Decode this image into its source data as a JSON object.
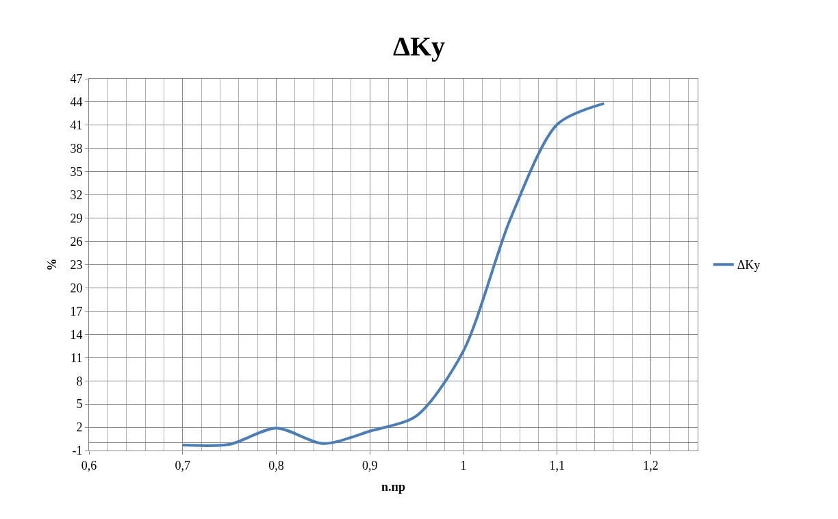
{
  "chart_data": {
    "type": "line",
    "title": "ΔKy",
    "xlabel": "n.пр",
    "ylabel": "%",
    "x": [
      0.7,
      0.75,
      0.8,
      0.85,
      0.9,
      0.95,
      1.0,
      1.05,
      1.1,
      1.15
    ],
    "series": [
      {
        "name": "ΔKy",
        "color": "#4a7ebb",
        "values": [
          -0.3,
          -0.2,
          1.9,
          -0.1,
          1.5,
          3.5,
          11.9,
          28.9,
          41.1,
          43.8
        ]
      }
    ],
    "xlim": [
      0.6,
      1.25
    ],
    "xticks": [
      {
        "value": 0.6,
        "label": "0,6"
      },
      {
        "value": 0.7,
        "label": "0,7"
      },
      {
        "value": 0.8,
        "label": "0,8"
      },
      {
        "value": 0.9,
        "label": "0,9"
      },
      {
        "value": 1,
        "label": "1"
      },
      {
        "value": 1.1,
        "label": "1,1"
      },
      {
        "value": 1.2,
        "label": "1,2"
      }
    ],
    "ylim": [
      -1,
      47
    ],
    "yticks": [
      -1,
      2,
      5,
      8,
      11,
      14,
      17,
      20,
      23,
      26,
      29,
      32,
      35,
      38,
      41,
      44,
      47
    ],
    "grid": true,
    "legend": "right",
    "marker": "none",
    "line_style": "solid"
  }
}
